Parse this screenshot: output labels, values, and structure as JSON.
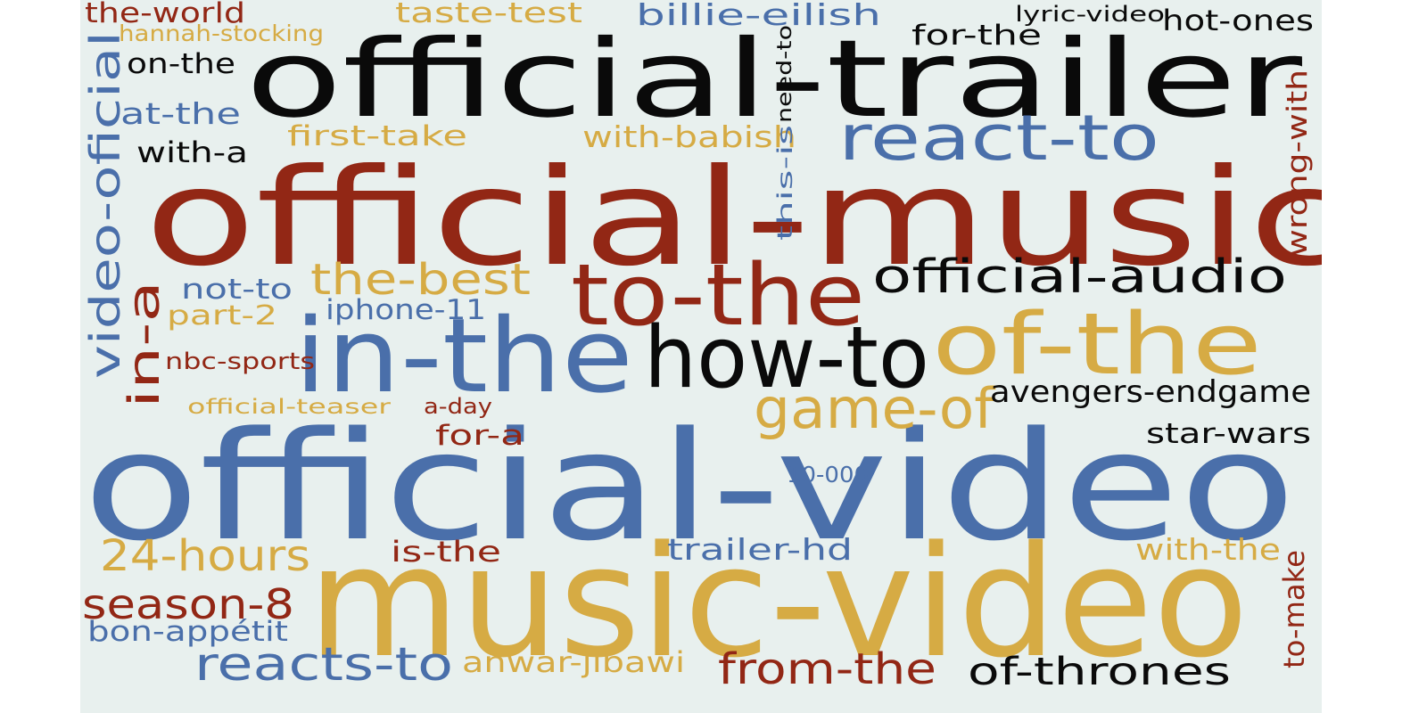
{
  "palette": {
    "red": "#922715",
    "blue": "#4a6faa",
    "gold": "#d6ab44",
    "black": "#0a0a0a",
    "background": "#e8f0ee"
  },
  "words": [
    {
      "id": "official-video",
      "text": "official-video",
      "color": "blue",
      "orientation": "horizontal"
    },
    {
      "id": "music-video",
      "text": "music-video",
      "color": "gold",
      "orientation": "horizontal"
    },
    {
      "id": "official-music",
      "text": "official-music",
      "color": "red",
      "orientation": "horizontal"
    },
    {
      "id": "official-trailer",
      "text": "official-trailer",
      "color": "black",
      "orientation": "horizontal"
    },
    {
      "id": "in-the",
      "text": "in-the",
      "color": "blue",
      "orientation": "horizontal"
    },
    {
      "id": "of-the",
      "text": "of-the",
      "color": "gold",
      "orientation": "horizontal"
    },
    {
      "id": "how-to",
      "text": "how-to",
      "color": "black",
      "orientation": "horizontal"
    },
    {
      "id": "to-the",
      "text": "to-the",
      "color": "red",
      "orientation": "horizontal"
    },
    {
      "id": "react-to",
      "text": "react-to",
      "color": "blue",
      "orientation": "horizontal"
    },
    {
      "id": "official-audio",
      "text": "official-audio",
      "color": "black",
      "orientation": "horizontal"
    },
    {
      "id": "game-of",
      "text": "game-of",
      "color": "gold",
      "orientation": "horizontal"
    },
    {
      "id": "the-best",
      "text": "the-best",
      "color": "gold",
      "orientation": "horizontal"
    },
    {
      "id": "video-oficial",
      "text": "video-oficial",
      "color": "blue",
      "orientation": "vertical"
    },
    {
      "id": "in-a",
      "text": "in-a",
      "color": "red",
      "orientation": "vertical"
    },
    {
      "id": "avengers-endgame",
      "text": "avengers-endgame",
      "color": "black",
      "orientation": "horizontal"
    },
    {
      "id": "star-wars",
      "text": "star-wars",
      "color": "black",
      "orientation": "horizontal"
    },
    {
      "id": "24-hours",
      "text": "24-hours",
      "color": "gold",
      "orientation": "horizontal"
    },
    {
      "id": "season-8",
      "text": "season-8",
      "color": "red",
      "orientation": "horizontal"
    },
    {
      "id": "reacts-to",
      "text": "reacts-to",
      "color": "blue",
      "orientation": "horizontal"
    },
    {
      "id": "from-the",
      "text": "from-the",
      "color": "red",
      "orientation": "horizontal"
    },
    {
      "id": "of-thrones",
      "text": "of-thrones",
      "color": "black",
      "orientation": "horizontal"
    },
    {
      "id": "bon-appetit",
      "text": "bon-appétit",
      "color": "blue",
      "orientation": "horizontal"
    },
    {
      "id": "anwar-jibawi",
      "text": "anwar-jibawi",
      "color": "gold",
      "orientation": "horizontal"
    },
    {
      "id": "trailer-hd",
      "text": "trailer-hd",
      "color": "blue",
      "orientation": "horizontal"
    },
    {
      "id": "is-the",
      "text": "is-the",
      "color": "red",
      "orientation": "horizontal"
    },
    {
      "id": "with-the",
      "text": "with-the",
      "color": "gold",
      "orientation": "horizontal"
    },
    {
      "id": "to-make",
      "text": "to-make",
      "color": "red",
      "orientation": "vertical"
    },
    {
      "id": "10-000",
      "text": "10-000",
      "color": "blue",
      "orientation": "horizontal"
    },
    {
      "id": "for-a",
      "text": "for-a",
      "color": "red",
      "orientation": "horizontal"
    },
    {
      "id": "a-day",
      "text": "a-day",
      "color": "red",
      "orientation": "horizontal"
    },
    {
      "id": "official-teaser",
      "text": "official-teaser",
      "color": "gold",
      "orientation": "horizontal"
    },
    {
      "id": "nbc-sports",
      "text": "nbc-sports",
      "color": "red",
      "orientation": "horizontal"
    },
    {
      "id": "iphone-11",
      "text": "iphone-11",
      "color": "blue",
      "orientation": "horizontal"
    },
    {
      "id": "part-2",
      "text": "part-2",
      "color": "gold",
      "orientation": "horizontal"
    },
    {
      "id": "not-to",
      "text": "not-to",
      "color": "blue",
      "orientation": "horizontal"
    },
    {
      "id": "with-a",
      "text": "with-a",
      "color": "black",
      "orientation": "horizontal"
    },
    {
      "id": "first-take",
      "text": "first-take",
      "color": "gold",
      "orientation": "horizontal"
    },
    {
      "id": "with-babish",
      "text": "with-babish",
      "color": "gold",
      "orientation": "horizontal"
    },
    {
      "id": "at-the",
      "text": "at-the",
      "color": "blue",
      "orientation": "horizontal"
    },
    {
      "id": "on-the",
      "text": "on-the",
      "color": "black",
      "orientation": "horizontal"
    },
    {
      "id": "the-world",
      "text": "the-world",
      "color": "red",
      "orientation": "horizontal"
    },
    {
      "id": "hannah-stocking",
      "text": "hannah-stocking",
      "color": "gold",
      "orientation": "horizontal"
    },
    {
      "id": "taste-test",
      "text": "taste-test",
      "color": "gold",
      "orientation": "horizontal"
    },
    {
      "id": "billie-eilish",
      "text": "billie-eilish",
      "color": "blue",
      "orientation": "horizontal"
    },
    {
      "id": "lyric-video",
      "text": "lyric-video",
      "color": "black",
      "orientation": "horizontal"
    },
    {
      "id": "hot-ones",
      "text": "hot-ones",
      "color": "black",
      "orientation": "horizontal"
    },
    {
      "id": "for-the",
      "text": "for-the",
      "color": "black",
      "orientation": "horizontal"
    },
    {
      "id": "need-to",
      "text": "need-to",
      "color": "black",
      "orientation": "vertical"
    },
    {
      "id": "this-is",
      "text": "this-is",
      "color": "blue",
      "orientation": "vertical"
    },
    {
      "id": "wrong-with",
      "text": "wrong-with",
      "color": "red",
      "orientation": "vertical"
    }
  ]
}
